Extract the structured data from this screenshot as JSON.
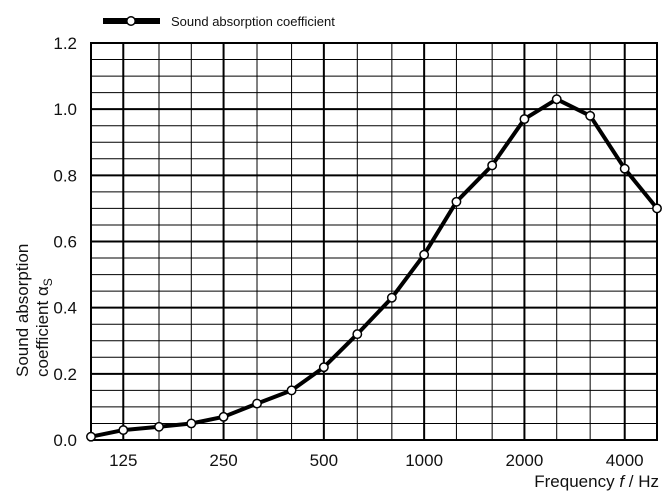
{
  "chart_data": {
    "type": "line",
    "title": "",
    "xlabel": "Frequency f / Hz",
    "xlabel_parts": [
      "Frequency ",
      "f",
      " / Hz"
    ],
    "ylabel_line1": "Sound absorption",
    "ylabel_line2": "coefficient α",
    "ylabel_sub": "S",
    "x_scale": "log (one-third octave bands)",
    "x_tick_labels": [
      "125",
      "250",
      "500",
      "1000",
      "2000",
      "4000"
    ],
    "x_tick_values": [
      125,
      250,
      500,
      1000,
      2000,
      4000
    ],
    "y_tick_labels": [
      "0.0",
      "0.2",
      "0.4",
      "0.6",
      "0.8",
      "1.0",
      "1.2"
    ],
    "ylim": [
      0,
      1.2
    ],
    "grid": true,
    "legend_position": "top-left, above plot",
    "series": [
      {
        "name": "Sound absorption coefficient",
        "x": [
          100,
          125,
          160,
          200,
          250,
          315,
          400,
          500,
          630,
          800,
          1000,
          1250,
          1600,
          2000,
          2500,
          3150,
          4000,
          5000
        ],
        "values": [
          0.01,
          0.03,
          0.04,
          0.05,
          0.07,
          0.11,
          0.15,
          0.22,
          0.32,
          0.43,
          0.56,
          0.72,
          0.83,
          0.97,
          1.03,
          0.98,
          0.82,
          0.7
        ],
        "color": "#000000",
        "marker": "open-circle"
      }
    ]
  }
}
